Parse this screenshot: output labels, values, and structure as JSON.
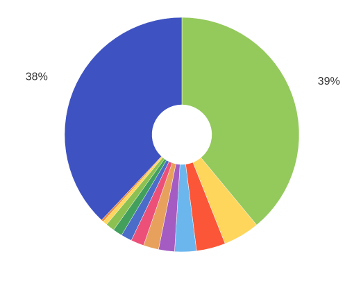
{
  "chart_data": {
    "type": "donut",
    "values": [
      39,
      5,
      4,
      3,
      2.2,
      2.1,
      1.8,
      1.5,
      1.3,
      1.2,
      0.6,
      0.3,
      38
    ],
    "value_labels": [
      "39%",
      null,
      null,
      null,
      null,
      null,
      null,
      null,
      null,
      null,
      null,
      null,
      "38%"
    ],
    "colors": [
      "#94c95c",
      "#ffd65c",
      "#fb5637",
      "#6cb6ee",
      "#a55cc2",
      "#e7a15d",
      "#ec5079",
      "#4b6cc8",
      "#42a05c",
      "#8cc152",
      "#ffd65c",
      "#f08a3a",
      "#3e52c1"
    ]
  }
}
